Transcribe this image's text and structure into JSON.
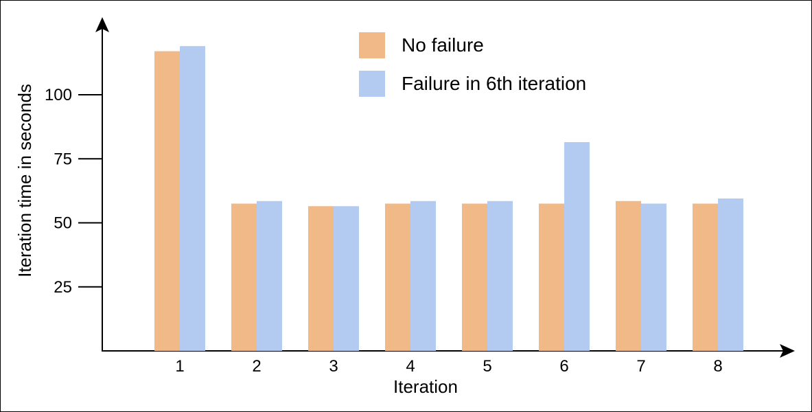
{
  "chart_data": {
    "type": "bar",
    "title": "",
    "xlabel": "Iteration",
    "ylabel": "Iteration time in seconds",
    "categories": [
      "1",
      "2",
      "3",
      "4",
      "5",
      "6",
      "7",
      "8"
    ],
    "yticks": [
      "25",
      "50",
      "75",
      "100"
    ],
    "ylim": [
      0,
      125
    ],
    "grid": false,
    "legend_position": "top-center",
    "series": [
      {
        "name": "No failure",
        "color": "#f0b987",
        "values": [
          117,
          57.5,
          56.5,
          57.5,
          57.5,
          57.5,
          58.5,
          57.5
        ]
      },
      {
        "name": "Failure in 6th iteration",
        "color": "#b3cbf0",
        "values": [
          119,
          58.5,
          56.5,
          58.5,
          58.5,
          81.5,
          57.5,
          59.5
        ]
      }
    ]
  }
}
